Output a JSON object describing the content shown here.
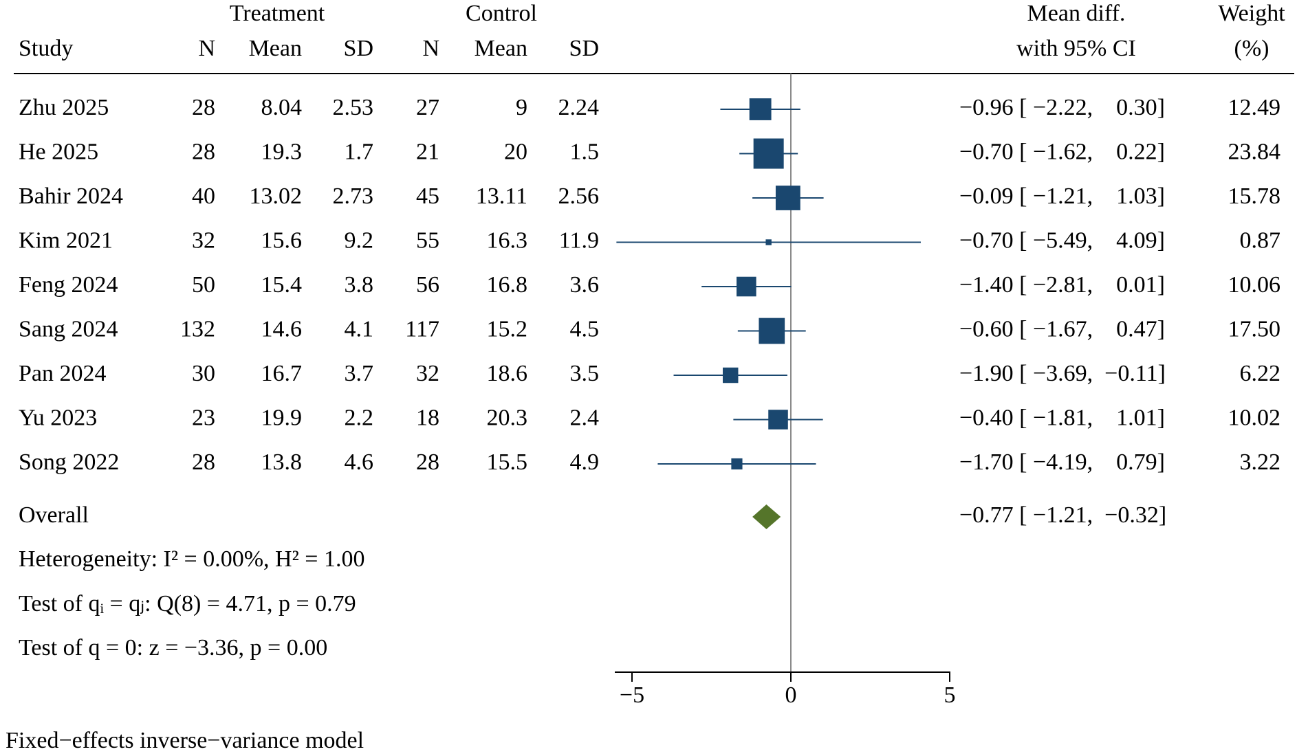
{
  "chart_data": {
    "type": "forest",
    "headers": {
      "treatment_group": "Treatment",
      "control_group": "Control",
      "study": "Study",
      "n": "N",
      "mean": "Mean",
      "sd": "SD",
      "effect_line1": "Mean diff.",
      "effect_line2": "with 95% CI",
      "weight_line1": "Weight",
      "weight_line2": "(%)"
    },
    "studies": [
      {
        "study": "Zhu 2025",
        "tn": "28",
        "tmean": "8.04",
        "tsd": "2.53",
        "cn": "27",
        "cmean": "9",
        "csd": "2.24",
        "md": -0.96,
        "lo": -2.22,
        "hi": 0.3,
        "ci": "−0.96 [ −2.22,    0.30]",
        "weight": 12.49,
        "weight_label": "12.49"
      },
      {
        "study": "He 2025",
        "tn": "28",
        "tmean": "19.3",
        "tsd": "1.7",
        "cn": "21",
        "cmean": "20",
        "csd": "1.5",
        "md": -0.7,
        "lo": -1.62,
        "hi": 0.22,
        "ci": "−0.70 [ −1.62,    0.22]",
        "weight": 23.84,
        "weight_label": "23.84"
      },
      {
        "study": "Bahir 2024",
        "tn": "40",
        "tmean": "13.02",
        "tsd": "2.73",
        "cn": "45",
        "cmean": "13.11",
        "csd": "2.56",
        "md": -0.09,
        "lo": -1.21,
        "hi": 1.03,
        "ci": "−0.09 [ −1.21,    1.03]",
        "weight": 15.78,
        "weight_label": "15.78"
      },
      {
        "study": "Kim 2021",
        "tn": "32",
        "tmean": "15.6",
        "tsd": "9.2",
        "cn": "55",
        "cmean": "16.3",
        "csd": "11.9",
        "md": -0.7,
        "lo": -5.49,
        "hi": 4.09,
        "ci": "−0.70 [ −5.49,    4.09]",
        "weight": 0.87,
        "weight_label": "0.87"
      },
      {
        "study": "Feng 2024",
        "tn": "50",
        "tmean": "15.4",
        "tsd": "3.8",
        "cn": "56",
        "cmean": "16.8",
        "csd": "3.6",
        "md": -1.4,
        "lo": -2.81,
        "hi": 0.01,
        "ci": "−1.40 [ −2.81,    0.01]",
        "weight": 10.06,
        "weight_label": "10.06"
      },
      {
        "study": "Sang 2024",
        "tn": "132",
        "tmean": "14.6",
        "tsd": "4.1",
        "cn": "117",
        "cmean": "15.2",
        "csd": "4.5",
        "md": -0.6,
        "lo": -1.67,
        "hi": 0.47,
        "ci": "−0.60 [ −1.67,    0.47]",
        "weight": 17.5,
        "weight_label": "17.50"
      },
      {
        "study": "Pan 2024",
        "tn": "30",
        "tmean": "16.7",
        "tsd": "3.7",
        "cn": "32",
        "cmean": "18.6",
        "csd": "3.5",
        "md": -1.9,
        "lo": -3.69,
        "hi": -0.11,
        "ci": "−1.90 [ −3.69,  −0.11]",
        "weight": 6.22,
        "weight_label": "6.22"
      },
      {
        "study": "Yu 2023",
        "tn": "23",
        "tmean": "19.9",
        "tsd": "2.2",
        "cn": "18",
        "cmean": "20.3",
        "csd": "2.4",
        "md": -0.4,
        "lo": -1.81,
        "hi": 1.01,
        "ci": "−0.40 [ −1.81,    1.01]",
        "weight": 10.02,
        "weight_label": "10.02"
      },
      {
        "study": "Song 2022",
        "tn": "28",
        "tmean": "13.8",
        "tsd": "4.6",
        "cn": "28",
        "cmean": "15.5",
        "csd": "4.9",
        "md": -1.7,
        "lo": -4.19,
        "hi": 0.79,
        "ci": "−1.70 [ −4.19,    0.79]",
        "weight": 3.22,
        "weight_label": "3.22"
      }
    ],
    "overall": {
      "label": "Overall",
      "md": -0.77,
      "lo": -1.21,
      "hi": -0.32,
      "ci": "−0.77 [ −1.21,  −0.32]"
    },
    "heterogeneity": "Heterogeneity: I² = 0.00%, H² = 1.00",
    "test_homogeneity": "Test of qᵢ = qⱼ: Q(8) = 4.71, p = 0.79",
    "test_overall": "Test of q = 0: z = −3.36, p = 0.00",
    "footnote": "Fixed−effects inverse−variance model",
    "x_ticks": [
      -5,
      0,
      5
    ],
    "x_tick_labels": [
      "−5",
      "0",
      "5"
    ],
    "xlim": [
      -5.6,
      5
    ],
    "colors": {
      "marker": "#1a476f",
      "overall": "#55752a",
      "refline": "#8a8a8a"
    }
  }
}
